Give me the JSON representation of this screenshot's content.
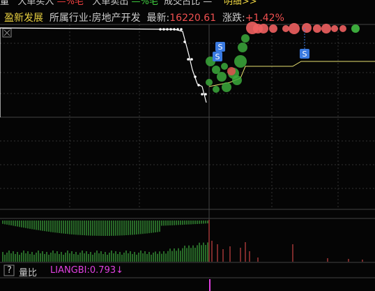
{
  "top_bar": {
    "items": [
      "量",
      "大单买入",
      "—%毛",
      "大单卖出",
      "—%毛",
      "成交占比",
      "—",
      "明细>>"
    ]
  },
  "header": {
    "name": "盈新发展",
    "industry_label": "所属行业:",
    "industry": "房地产开发",
    "latest_label": "最新:",
    "latest": "16220.61",
    "change_label": "涨跌:",
    "change": "+1.42%"
  },
  "markers": [
    "S",
    "S",
    "S"
  ],
  "indicator": {
    "help": "?",
    "name": "量比",
    "value": "LIANGBI:0.793",
    "arrow": "↓"
  }
}
